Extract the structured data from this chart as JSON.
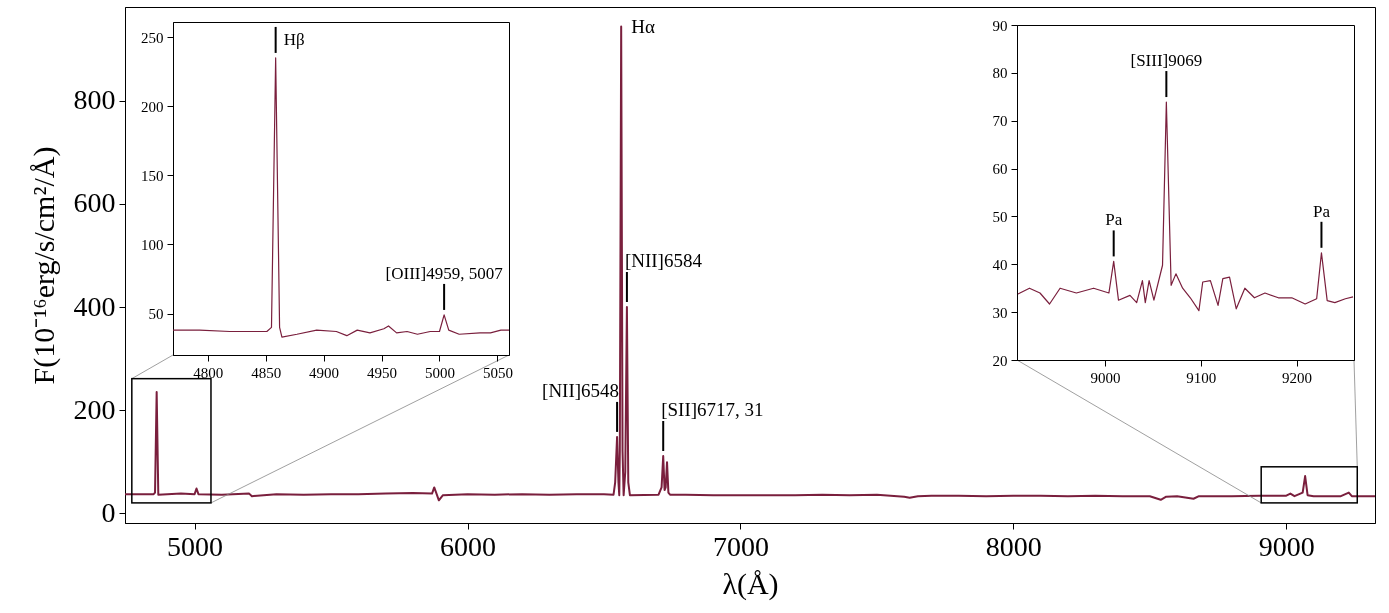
{
  "chart_data": [
    {
      "type": "line",
      "xlabel": "λ(Å)",
      "ylabel": "F(10⁻¹⁶erg/s/cm²/Å)",
      "color": "#7a1f3d",
      "xlim": [
        4745,
        9325
      ],
      "ylim": [
        -19,
        982
      ],
      "xticks": [
        5000,
        6000,
        7000,
        8000,
        9000
      ],
      "yticks": [
        0,
        200,
        400,
        600,
        800
      ],
      "x": [
        4745,
        4800,
        4850,
        4855,
        4861,
        4867,
        4900,
        4950,
        5000,
        5007,
        5014,
        5100,
        5200,
        5210,
        5300,
        5400,
        5500,
        5600,
        5700,
        5800,
        5870,
        5878,
        5885,
        5895,
        5910,
        6000,
        6100,
        6200,
        6300,
        6400,
        6500,
        6535,
        6541,
        6548,
        6553,
        6556,
        6558,
        6563,
        6568,
        6572,
        6578,
        6584,
        6589,
        6595,
        6700,
        6711,
        6717,
        6722,
        6726,
        6731,
        6736,
        6742,
        6800,
        6900,
        7000,
        7100,
        7200,
        7300,
        7400,
        7500,
        7600,
        7620,
        7650,
        7700,
        7800,
        7900,
        8000,
        8100,
        8200,
        8300,
        8400,
        8500,
        8540,
        8560,
        8600,
        8660,
        8680,
        8700,
        8800,
        8900,
        9000,
        9015,
        9030,
        9060,
        9069,
        9078,
        9100,
        9200,
        9229,
        9240,
        9300,
        9325
      ],
      "values": [
        37,
        37,
        37,
        40,
        235,
        36,
        37,
        38,
        37,
        48,
        37,
        36,
        38,
        33,
        37,
        36,
        37,
        37,
        38,
        39,
        38,
        50,
        40,
        25,
        35,
        37,
        36,
        37,
        36,
        37,
        37,
        36,
        60,
        148,
        60,
        35,
        120,
        944,
        120,
        35,
        80,
        400,
        60,
        35,
        36,
        50,
        111,
        45,
        50,
        99,
        40,
        36,
        36,
        35,
        35,
        35,
        35,
        36,
        35,
        36,
        32,
        30,
        33,
        34,
        34,
        33,
        34,
        34,
        33,
        34,
        33,
        33,
        26,
        32,
        33,
        28,
        33,
        33,
        33,
        34,
        34,
        38,
        33,
        40,
        72,
        35,
        33,
        33,
        40,
        33,
        33,
        33
      ],
      "annotations": [
        {
          "text": "Hα",
          "x": 6563,
          "y": 944
        },
        {
          "text": "[NII]6584",
          "x": 6584,
          "y": 400
        },
        {
          "text": "[NII]6548",
          "x": 6548,
          "y": 148
        },
        {
          "text": "[SII]6717, 31",
          "x": 6717,
          "y": 111
        }
      ]
    },
    {
      "type": "line",
      "color": "#7a1f3d",
      "xlim": [
        4770,
        5060
      ],
      "ylim": [
        20,
        261
      ],
      "xticks": [
        4800,
        4850,
        4900,
        4950,
        5000,
        5050
      ],
      "yticks": [
        50,
        100,
        150,
        200,
        250
      ],
      "x": [
        4770,
        4793,
        4819,
        4851,
        4855,
        4858.6,
        4862,
        4864,
        4877,
        4894,
        4911,
        4920,
        4929,
        4940,
        4952,
        4956,
        4963,
        4972,
        4981,
        4992,
        5000,
        5004,
        5008,
        5017,
        5035,
        5044,
        5053,
        5060
      ],
      "values": [
        38,
        38,
        37,
        37,
        40,
        235,
        40,
        33,
        35,
        38,
        37,
        34,
        38,
        36,
        39,
        41,
        36,
        37,
        35,
        37,
        37,
        49,
        38,
        35,
        36,
        36,
        38,
        38
      ],
      "annotations": [
        {
          "text": "Hβ",
          "x": 4858.6,
          "y": 235
        },
        {
          "text": "[OIII]4959, 5007",
          "x": 5004,
          "y": 49
        }
      ]
    },
    {
      "type": "line",
      "color": "#7a1f3d",
      "xlim": [
        8908,
        9260
      ],
      "ylim": [
        20,
        90
      ],
      "xticks": [
        9000,
        9100,
        9200
      ],
      "yticks": [
        20,
        30,
        40,
        50,
        60,
        70,
        80,
        90
      ],
      "x": [
        8909,
        8921,
        8932,
        8942,
        8953,
        8970,
        8988,
        9004,
        9009,
        9014,
        9026,
        9033,
        9039,
        9042,
        9046,
        9051,
        9060,
        9064,
        9069,
        9074,
        9081,
        9089,
        9098,
        9102,
        9110,
        9118,
        9123,
        9130,
        9137,
        9146,
        9156,
        9167,
        9181,
        9195,
        9209,
        9221,
        9226,
        9232,
        9240,
        9251,
        9259
      ],
      "values": [
        33.8,
        35,
        34,
        31.7,
        35,
        34,
        35,
        34,
        40.6,
        32.5,
        33.5,
        32,
        36.6,
        32,
        36.6,
        32.5,
        39.8,
        73.9,
        35.6,
        38,
        35,
        33,
        30.3,
        36.3,
        36.6,
        31.4,
        37,
        37.3,
        30.7,
        35,
        33,
        34,
        33,
        33,
        31.7,
        32.8,
        42.4,
        32.4,
        32,
        32.8,
        33.2
      ],
      "annotations": [
        {
          "text": "Pa",
          "x": 9009,
          "y": 40.6
        },
        {
          "text": "[SIII]9069",
          "x": 9064,
          "y": 73.9
        },
        {
          "text": "Pa",
          "x": 9226,
          "y": 42.4
        }
      ]
    }
  ]
}
